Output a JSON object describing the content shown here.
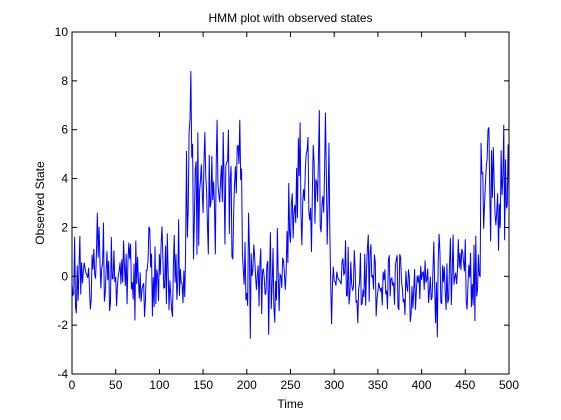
{
  "chart_data": {
    "type": "line",
    "title": "HMM plot with observed states",
    "xlabel": "Time",
    "ylabel": "Observed State",
    "xlim": [
      0,
      500
    ],
    "ylim": [
      -4,
      10
    ],
    "xticks": [
      "0",
      "50",
      "100",
      "150",
      "200",
      "250",
      "300",
      "350",
      "400",
      "450",
      "500"
    ],
    "yticks": [
      "-4",
      "-2",
      "0",
      "2",
      "4",
      "6",
      "8",
      "10"
    ],
    "grid": false,
    "legend": "none",
    "colors": {
      "line": "#0000ff",
      "axes": "#000000",
      "background": "#ffffff"
    },
    "regimes": [
      {
        "start": 0,
        "end": 130,
        "mean": 0.0,
        "sd": 1.0
      },
      {
        "start": 130,
        "end": 195,
        "mean": 3.3,
        "sd": 1.3
      },
      {
        "start": 195,
        "end": 248,
        "mean": 0.0,
        "sd": 1.0
      },
      {
        "start": 248,
        "end": 296,
        "mean": 3.6,
        "sd": 1.3
      },
      {
        "start": 296,
        "end": 468,
        "mean": -0.1,
        "sd": 0.9
      },
      {
        "start": 468,
        "end": 500,
        "mean": 3.4,
        "sd": 1.2
      }
    ],
    "peaks": [
      {
        "x": 136,
        "y": 8.4
      },
      {
        "x": 135,
        "y": 6.4
      },
      {
        "x": 152,
        "y": 5.9
      },
      {
        "x": 166,
        "y": 6.4
      },
      {
        "x": 175,
        "y": 1.3
      },
      {
        "x": 179,
        "y": 6.0
      },
      {
        "x": 192,
        "y": 6.4
      },
      {
        "x": 225,
        "y": -2.4
      },
      {
        "x": 261,
        "y": 6.3
      },
      {
        "x": 270,
        "y": 5.7
      },
      {
        "x": 283,
        "y": 6.8
      },
      {
        "x": 290,
        "y": 6.7
      },
      {
        "x": 418,
        "y": -2.5
      },
      {
        "x": 477,
        "y": 6.1
      },
      {
        "x": 494,
        "y": 6.2
      },
      {
        "x": 499,
        "y": 5.4
      }
    ]
  }
}
